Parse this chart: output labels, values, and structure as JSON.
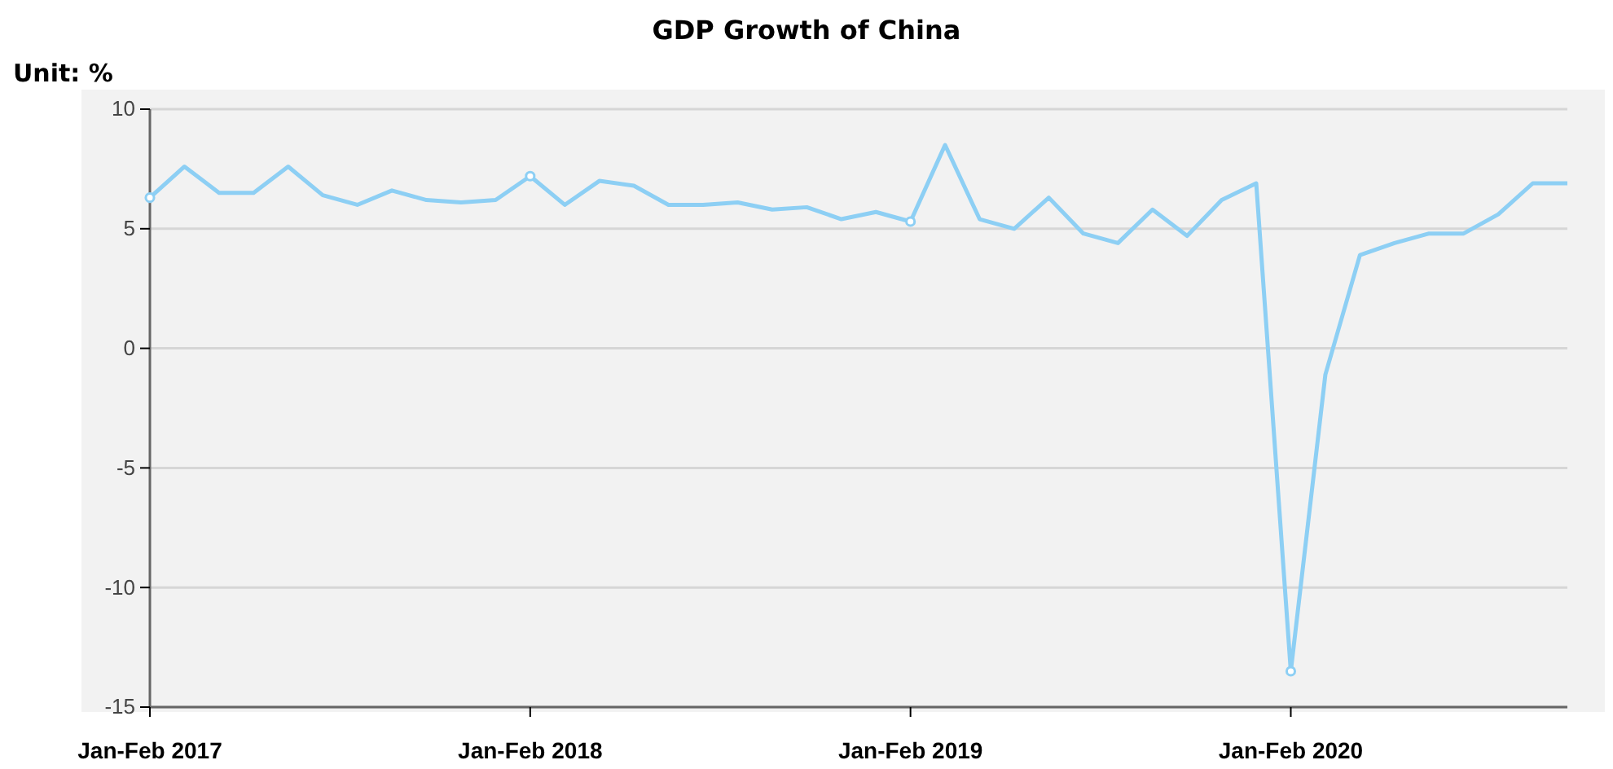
{
  "chart_data": {
    "type": "line",
    "title": "GDP Growth of China",
    "ylabel": "Unit: %",
    "categories": [
      "Jan-Feb 2017",
      null,
      null,
      null,
      null,
      null,
      null,
      null,
      null,
      null,
      null,
      "Jan-Feb 2018",
      null,
      null,
      null,
      null,
      null,
      null,
      null,
      null,
      null,
      null,
      "Jan-Feb 2019",
      null,
      null,
      null,
      null,
      null,
      null,
      null,
      null,
      null,
      null,
      "Jan-Feb 2020",
      null,
      null,
      null,
      null,
      null,
      null,
      null,
      null
    ],
    "series": [
      {
        "color": "#8dcff4",
        "values": [
          6.3,
          7.6,
          6.5,
          6.5,
          7.6,
          6.4,
          6.0,
          6.6,
          6.2,
          6.1,
          6.2,
          7.2,
          6.0,
          7.0,
          6.8,
          6.0,
          6.0,
          6.1,
          5.8,
          5.9,
          5.4,
          5.7,
          5.3,
          8.5,
          5.4,
          5.0,
          6.3,
          4.8,
          4.4,
          5.8,
          4.7,
          6.2,
          6.9,
          -13.5,
          -1.1,
          3.9,
          4.4,
          4.8,
          4.8,
          5.6,
          6.9,
          6.9
        ]
      },
      {
        "type": "scatter",
        "marker": "circle",
        "color": "#8dcff4",
        "x": [
          "Jan-Feb 2017",
          "Jan-Feb 2018",
          "Jan-Feb 2019",
          "Jan-Feb 2020"
        ],
        "values": [
          6.3,
          7.2,
          5.3,
          -13.5
        ]
      }
    ],
    "ylim": [
      -15,
      10
    ],
    "yticks": [
      -15,
      -10,
      -5,
      0,
      5,
      10
    ],
    "grid": "y",
    "line_style": "solid"
  }
}
